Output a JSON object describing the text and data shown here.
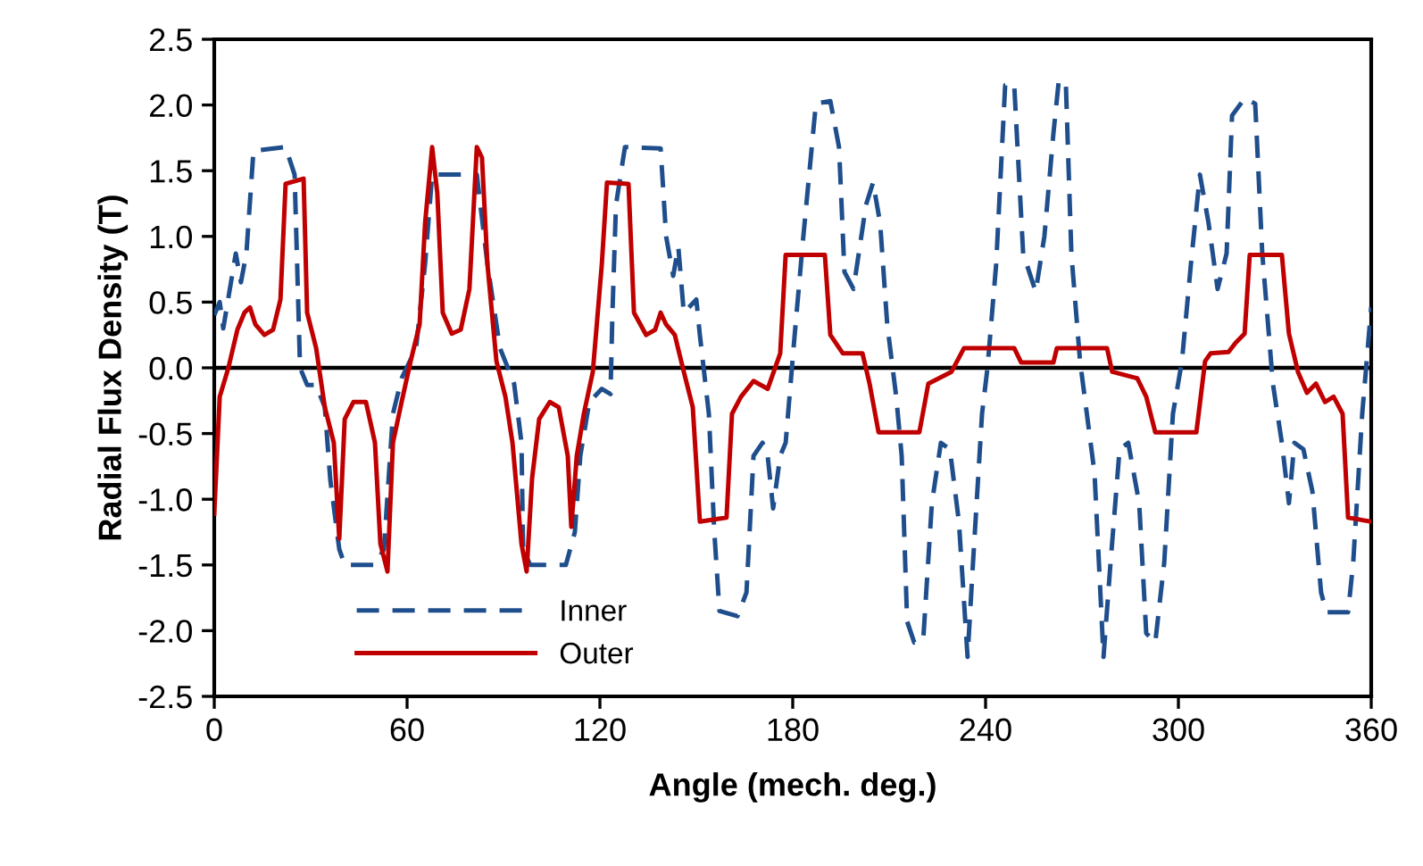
{
  "chart_data": {
    "type": "line",
    "xlabel": "Angle (mech. deg.)",
    "ylabel": "Radial Flux Density (T)",
    "xlim": [
      0,
      360
    ],
    "xticks": [
      0,
      60,
      120,
      180,
      240,
      300,
      360
    ],
    "ylim": [
      -2.5,
      2.5
    ],
    "yticks": [
      {
        "value": -2.5,
        "label": "-2.5"
      },
      {
        "value": -2,
        "label": "-2.0"
      },
      {
        "value": -1.5,
        "label": "-1.5"
      },
      {
        "value": -1,
        "label": "-1.0"
      },
      {
        "value": -0.5,
        "label": "-0.5"
      },
      {
        "value": 0,
        "label": "0.0"
      },
      {
        "value": 0.5,
        "label": "0.5"
      },
      {
        "value": 1,
        "label": "1.0"
      },
      {
        "value": 1.5,
        "label": "1.5"
      },
      {
        "value": 2,
        "label": "2.0"
      },
      {
        "value": 2.5,
        "label": "2.5"
      }
    ],
    "grid": false,
    "legend": "bottom left",
    "marker": "none",
    "ref_lines": [
      {
        "axis": "y",
        "value": 0,
        "color": "#000000",
        "line_style": "solid"
      }
    ],
    "series": [
      {
        "name": "Inner",
        "color": "#1f4e8c",
        "line_style": "dashed",
        "x": [
          0,
          1.7,
          2.8,
          6.7,
          8.3,
          10,
          12.2,
          22.2,
          25,
          26.7,
          28.9,
          31.7,
          34.4,
          36.1,
          38.9,
          40.6,
          50,
          52.8,
          55.6,
          58.3,
          62.8,
          65.6,
          67.8,
          81.7,
          85,
          88.9,
          93.3,
          95.6,
          96.1,
          98.3,
          109.4,
          112.2,
          113.9,
          116.7,
          120.6,
          123.3,
          123.9,
          125,
          127.8,
          138.9,
          140.6,
          142.8,
          144.4,
          146.1,
          150,
          151.1,
          153.9,
          155.6,
          157.2,
          162.8,
          165.6,
          167.8,
          170.6,
          172.2,
          173.9,
          176.1,
          177.8,
          180.6,
          183.3,
          187.2,
          191.7,
          194.4,
          196.1,
          198.9,
          202.8,
          205,
          207.2,
          209.4,
          212.2,
          213.9,
          215.6,
          217.8,
          220.6,
          223.3,
          226.1,
          228.9,
          231.7,
          234.4,
          236.1,
          238.9,
          240.6,
          243.3,
          246.1,
          248.9,
          251.7,
          255.6,
          258.3,
          261.1,
          262.8,
          265,
          266.7,
          269.4,
          273.9,
          276.7,
          278.9,
          281.7,
          284.4,
          287.8,
          290,
          292.8,
          295.6,
          298.3,
          301.1,
          303.9,
          306.7,
          309.4,
          312.2,
          315,
          316.7,
          320.6,
          323.9,
          326.1,
          329.4,
          332.2,
          334.4,
          336.1,
          338.9,
          341.7,
          344.4,
          346.1,
          352.8,
          354.4,
          357.2,
          360
        ],
        "values": [
          0.4,
          0.5,
          0.3,
          0.87,
          0.65,
          0.87,
          1.65,
          1.68,
          1.47,
          0,
          -0.13,
          -0.13,
          -0.3,
          -0.85,
          -1.38,
          -1.5,
          -1.5,
          -1.38,
          -0.35,
          -0.08,
          0.15,
          0.79,
          1.47,
          1.47,
          0.79,
          0.15,
          -0.12,
          -0.57,
          -1.38,
          -1.5,
          -1.5,
          -1.25,
          -0.67,
          -0.26,
          -0.16,
          -0.2,
          0.42,
          1.24,
          1.68,
          1.67,
          1.0,
          0.7,
          0.92,
          0.42,
          0.52,
          0.25,
          -0.35,
          -1.25,
          -1.85,
          -1.89,
          -1.71,
          -0.67,
          -0.57,
          -0.67,
          -1.07,
          -0.67,
          -0.57,
          0.25,
          1.0,
          2.01,
          2.03,
          1.68,
          0.73,
          0.6,
          1.24,
          1.41,
          1.1,
          0.33,
          -0.22,
          -0.67,
          -1.93,
          -2.09,
          -2.07,
          -1.03,
          -0.57,
          -0.62,
          -1.17,
          -2.2,
          -1.48,
          -0.35,
          0,
          0.79,
          2.15,
          2.16,
          0.87,
          0.58,
          1.0,
          1.78,
          2.19,
          2.15,
          0.87,
          0.05,
          -0.8,
          -2.2,
          -1.48,
          -0.62,
          -0.57,
          -1.03,
          -2.02,
          -2.09,
          -1.48,
          -0.35,
          0.05,
          0.79,
          1.47,
          1.1,
          0.6,
          0.87,
          1.92,
          2.05,
          2.01,
          0.87,
          -0.12,
          -0.57,
          -1.03,
          -0.57,
          -0.62,
          -0.94,
          -1.71,
          -1.86,
          -1.86,
          -1.48,
          -0.35,
          0.46
        ]
      },
      {
        "name": "Outer",
        "color": "#c00000",
        "line_style": "solid",
        "x": [
          0,
          1.7,
          4.4,
          7.2,
          9.4,
          11.1,
          12.8,
          15.6,
          18.3,
          20.6,
          22.2,
          27.8,
          28.9,
          31.7,
          34.4,
          37.2,
          38.9,
          40.6,
          43.3,
          47.2,
          50,
          51.7,
          53.9,
          55.6,
          58.3,
          61.1,
          63.9,
          65.6,
          67.8,
          69.4,
          71.1,
          73.9,
          76.7,
          79.4,
          81.7,
          83.3,
          85,
          87.8,
          90.6,
          92.8,
          95.6,
          97.2,
          98.9,
          101.1,
          104.4,
          107.2,
          110,
          111.1,
          112.8,
          115,
          117.8,
          120.6,
          122.2,
          128.9,
          130.6,
          134.4,
          137.2,
          138.9,
          140.6,
          143.3,
          146.1,
          148.9,
          151.1,
          159.4,
          161.1,
          163.9,
          167.8,
          172.2,
          176.1,
          177.8,
          190,
          191.7,
          195.6,
          201.7,
          203.9,
          206.7,
          219.4,
          222.2,
          229.4,
          233.3,
          248.9,
          251.1,
          261.1,
          262.2,
          277.8,
          279.4,
          287.2,
          290,
          292.8,
          305.6,
          308.3,
          310,
          315.6,
          317.8,
          320.6,
          322.2,
          332.2,
          334.4,
          337.2,
          340,
          342.8,
          345.6,
          348.3,
          351.1,
          352.8,
          360
        ],
        "values": [
          -1.11,
          -0.22,
          0,
          0.29,
          0.42,
          0.46,
          0.33,
          0.25,
          0.29,
          0.52,
          1.4,
          1.44,
          0.42,
          0.15,
          -0.3,
          -0.57,
          -1.3,
          -0.39,
          -0.26,
          -0.26,
          -0.57,
          -1.34,
          -1.55,
          -0.57,
          -0.26,
          0.05,
          0.33,
          1.1,
          1.68,
          1.33,
          0.42,
          0.26,
          0.29,
          0.6,
          1.68,
          1.6,
          0.79,
          0.05,
          -0.22,
          -0.57,
          -1.34,
          -1.55,
          -0.84,
          -0.39,
          -0.26,
          -0.3,
          -0.67,
          -1.21,
          -0.67,
          -0.35,
          -0.03,
          0.79,
          1.41,
          1.4,
          0.42,
          0.25,
          0.29,
          0.42,
          0.33,
          0.25,
          -0.03,
          -0.3,
          -1.17,
          -1.14,
          -0.35,
          -0.22,
          -0.1,
          -0.16,
          0.11,
          0.86,
          0.86,
          0.25,
          0.11,
          0.11,
          -0.12,
          -0.49,
          -0.49,
          -0.12,
          -0.03,
          0.15,
          0.15,
          0.04,
          0.04,
          0.15,
          0.15,
          -0.03,
          -0.08,
          -0.22,
          -0.49,
          -0.49,
          0.05,
          0.11,
          0.12,
          0.19,
          0.26,
          0.86,
          0.86,
          0.26,
          -0.03,
          -0.19,
          -0.12,
          -0.26,
          -0.22,
          -0.35,
          -1.14,
          -1.17
        ]
      }
    ]
  }
}
